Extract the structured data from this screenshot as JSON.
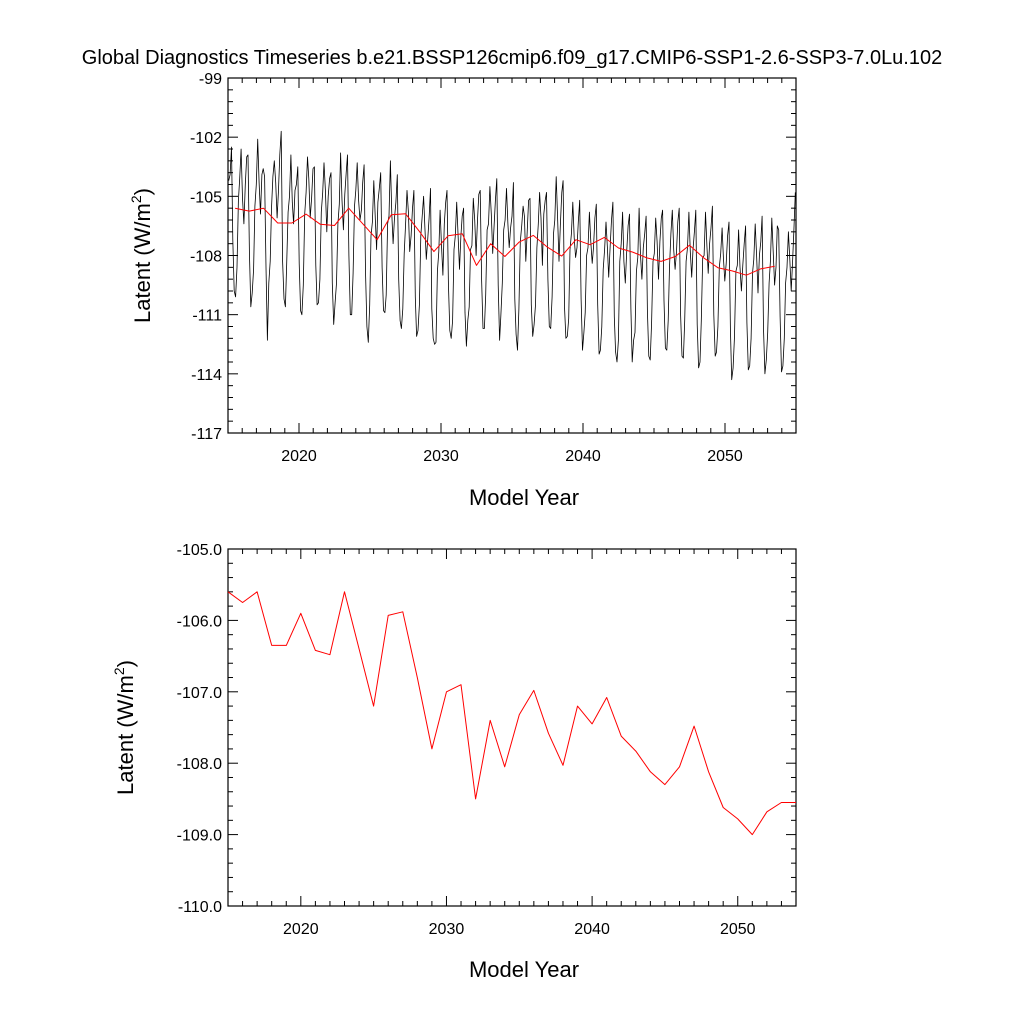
{
  "title": "Global Diagnostics Timeseries b.e21.BSSP126cmip6.f09_g17.CMIP6-SSP1-2.6-SSP3-7.0Lu.102",
  "chart_data": [
    {
      "type": "line",
      "xlabel": "Model Year",
      "ylabel_main": "Latent (W/m",
      "ylabel_sup": "2",
      "ylabel_close": ")",
      "xlim": [
        2015,
        2055
      ],
      "ylim": [
        -117,
        -99
      ],
      "xticks": [
        2020,
        2030,
        2040,
        2050
      ],
      "xtick_labels": [
        "2020",
        "2030",
        "2040",
        "2050"
      ],
      "yticks": [
        -99,
        -102,
        -105,
        -108,
        -111,
        -114,
        -117
      ],
      "ytick_labels": [
        "-99",
        "-102",
        "-105",
        "-108",
        "-111",
        "-114",
        "-117"
      ],
      "series": [
        {
          "color": "#000000",
          "description_values": "monthly values",
          "seasonal_phases": [
            0.0,
            2.6,
            4.2,
            -2.6,
            -4.8,
            -4.4,
            -2.4,
            0.4,
            2.2,
            3.6,
            1.2,
            0.0
          ],
          "noise_amplitude": 2.2,
          "x_start": 2015.0,
          "x_end": 2055.0,
          "values": [
            -104.2,
            -103.9,
            -102.5,
            -107.2,
            -109.8,
            -110.1,
            -108.6,
            -105.2,
            -104.1,
            -102.6,
            -105.1,
            -106.4,
            -104.4,
            -103.0,
            -102.9,
            -107.8,
            -110.6,
            -109.9,
            -108.7,
            -105.5,
            -104.4,
            -102.1,
            -104.3,
            -105.9,
            -103.9,
            -103.6,
            -104.0,
            -108.6,
            -112.3,
            -109.4,
            -108.3,
            -105.6,
            -104.0,
            -103.2,
            -104.3,
            -106.1,
            -104.8,
            -102.9,
            -101.7,
            -108.3,
            -110.2,
            -110.6,
            -108.4,
            -105.8,
            -105.0,
            -102.9,
            -105.3,
            -106.4,
            -104.7,
            -104.4,
            -103.5,
            -108.4,
            -110.8,
            -111.0,
            -109.5,
            -105.9,
            -104.8,
            -103.0,
            -104.1,
            -106.1,
            -105.1,
            -103.6,
            -103.5,
            -108.5,
            -110.5,
            -110.4,
            -109.2,
            -105.8,
            -104.8,
            -103.3,
            -104.7,
            -106.8,
            -105.0,
            -104.1,
            -103.8,
            -109.4,
            -111.5,
            -110.4,
            -109.4,
            -106.4,
            -105.4,
            -102.8,
            -105.2,
            -106.7,
            -104.9,
            -103.8,
            -102.9,
            -108.0,
            -111.0,
            -111.0,
            -108.9,
            -105.5,
            -104.7,
            -103.3,
            -105.2,
            -106.2,
            -105.7,
            -104.3,
            -103.4,
            -108.8,
            -111.6,
            -112.4,
            -110.5,
            -107.0,
            -106.3,
            -104.2,
            -106.0,
            -107.7,
            -105.3,
            -104.6,
            -103.8,
            -108.6,
            -110.8,
            -110.9,
            -110.0,
            -106.4,
            -106.0,
            -103.2,
            -105.9,
            -107.4,
            -106.1,
            -105.3,
            -103.9,
            -109.2,
            -111.3,
            -111.7,
            -110.7,
            -107.9,
            -106.4,
            -104.7,
            -105.8,
            -107.8,
            -107.0,
            -105.6,
            -104.7,
            -110.1,
            -112.1,
            -111.8,
            -110.5,
            -107.0,
            -106.0,
            -105.0,
            -106.6,
            -108.2,
            -107.2,
            -106.1,
            -104.6,
            -110.7,
            -112.2,
            -112.5,
            -112.4,
            -108.8,
            -107.8,
            -105.7,
            -107.5,
            -109.0,
            -106.4,
            -105.3,
            -104.7,
            -109.4,
            -111.8,
            -112.2,
            -111.3,
            -107.7,
            -107.0,
            -105.3,
            -107.0,
            -108.7,
            -107.0,
            -106.0,
            -105.6,
            -110.9,
            -112.6,
            -111.3,
            -110.6,
            -107.7,
            -107.5,
            -105.1,
            -106.2,
            -108.0,
            -106.2,
            -104.9,
            -104.7,
            -109.2,
            -111.7,
            -111.7,
            -110.0,
            -106.7,
            -106.4,
            -104.5,
            -105.9,
            -107.9,
            -106.6,
            -105.2,
            -104.1,
            -109.5,
            -112.3,
            -111.0,
            -109.4,
            -106.7,
            -106.2,
            -104.6,
            -106.4,
            -107.6,
            -106.6,
            -106.0,
            -104.3,
            -110.2,
            -112.0,
            -112.8,
            -110.7,
            -107.3,
            -106.5,
            -105.5,
            -106.0,
            -108.3,
            -106.8,
            -105.2,
            -105.1,
            -110.5,
            -112.1,
            -111.5,
            -110.5,
            -107.6,
            -106.4,
            -104.8,
            -106.1,
            -108.5,
            -105.9,
            -105.2,
            -104.8,
            -109.2,
            -111.6,
            -111.7,
            -110.1,
            -106.9,
            -106.2,
            -104.0,
            -106.1,
            -108.3,
            -106.4,
            -104.8,
            -104.2,
            -110.6,
            -112.2,
            -112.1,
            -111.2,
            -107.7,
            -106.9,
            -105.3,
            -107.1,
            -108.1,
            -107.6,
            -106.3,
            -105.2,
            -110.2,
            -112.8,
            -111.9,
            -110.9,
            -108.0,
            -107.6,
            -105.8,
            -107.3,
            -108.4,
            -107.6,
            -106.1,
            -105.4,
            -110.5,
            -113.0,
            -112.8,
            -111.6,
            -108.7,
            -107.7,
            -106.3,
            -107.6,
            -109.1,
            -107.6,
            -106.2,
            -105.3,
            -111.1,
            -112.9,
            -113.4,
            -112.3,
            -108.3,
            -107.4,
            -105.8,
            -108.3,
            -109.4,
            -107.8,
            -106.5,
            -105.9,
            -110.7,
            -113.4,
            -112.3,
            -111.9,
            -108.8,
            -108.1,
            -105.6,
            -108.0,
            -109.2,
            -107.6,
            -106.9,
            -106.0,
            -110.8,
            -113.1,
            -113.3,
            -111.4,
            -108.3,
            -107.9,
            -106.1,
            -107.3,
            -109.2,
            -107.3,
            -106.1,
            -105.7,
            -110.3,
            -112.7,
            -112.8,
            -111.3,
            -108.6,
            -106.9,
            -105.7,
            -107.7,
            -108.7,
            -107.8,
            -106.3,
            -105.6,
            -111.0,
            -113.1,
            -113.2,
            -111.3,
            -108.3,
            -107.6,
            -105.8,
            -107.8,
            -109.1,
            -107.7,
            -106.8,
            -105.7,
            -111.5,
            -113.7,
            -113.4,
            -111.3,
            -108.1,
            -108.0,
            -105.8,
            -107.5,
            -108.9,
            -107.4,
            -106.6,
            -105.5,
            -111.0,
            -113.1,
            -112.9,
            -111.6,
            -108.6,
            -107.9,
            -106.6,
            -108.1,
            -109.3,
            -108.4,
            -107.0,
            -106.3,
            -111.7,
            -114.3,
            -113.7,
            -112.1,
            -108.8,
            -108.5,
            -106.7,
            -108.6,
            -109.8,
            -108.5,
            -107.4,
            -106.5,
            -111.4,
            -113.8,
            -113.6,
            -112.2,
            -108.9,
            -108.2,
            -106.4,
            -108.0,
            -109.9,
            -108.0,
            -107.3,
            -106.0,
            -111.7,
            -114.0,
            -113.3,
            -111.9,
            -109.4,
            -108.3,
            -106.1,
            -107.8,
            -109.5,
            -108.6,
            -106.5,
            -106.7,
            -111.1,
            -113.9,
            -113.6,
            -112.2,
            -109.4,
            -108.6,
            -106.8,
            -108.2,
            -109.8,
            -108.4,
            -106.7,
            -104.8
          ]
        },
        {
          "color": "#ff0000",
          "description_values": "annual means",
          "x": [
            2015.5,
            2016.5,
            2017.5,
            2018.5,
            2019.5,
            2020.5,
            2021.5,
            2022.5,
            2023.5,
            2024.5,
            2025.5,
            2026.5,
            2027.5,
            2028.5,
            2029.5,
            2030.5,
            2031.5,
            2032.5,
            2033.5,
            2034.5,
            2035.5,
            2036.5,
            2037.5,
            2038.5,
            2039.5,
            2040.5,
            2041.5,
            2042.5,
            2043.5,
            2044.5,
            2045.5,
            2046.5,
            2047.5,
            2048.5,
            2049.5,
            2050.5,
            2051.5,
            2052.5,
            2053.5
          ],
          "values": [
            -105.6,
            -105.75,
            -105.6,
            -106.35,
            -106.35,
            -105.9,
            -106.42,
            -106.48,
            -105.6,
            -106.4,
            -107.2,
            -105.93,
            -105.88,
            -106.8,
            -107.8,
            -107.0,
            -106.9,
            -108.5,
            -107.4,
            -108.05,
            -107.32,
            -106.98,
            -107.58,
            -108.03,
            -107.2,
            -107.45,
            -107.08,
            -107.62,
            -107.83,
            -108.12,
            -108.3,
            -108.05,
            -107.48,
            -108.12,
            -108.62,
            -108.78,
            -109.0,
            -108.68,
            -108.55
          ]
        }
      ]
    },
    {
      "type": "line",
      "xlabel": "Model Year",
      "ylabel_main": "Latent (W/m",
      "ylabel_sup": "2",
      "ylabel_close": ")",
      "xlim": [
        2015,
        2054
      ],
      "ylim": [
        -110.0,
        -105.0
      ],
      "xticks": [
        2020,
        2030,
        2040,
        2050
      ],
      "xtick_labels": [
        "2020",
        "2030",
        "2040",
        "2050"
      ],
      "yticks": [
        -105.0,
        -106.0,
        -107.0,
        -108.0,
        -109.0,
        -110.0
      ],
      "ytick_labels": [
        "-105.0",
        "-106.0",
        "-107.0",
        "-108.0",
        "-109.0",
        "-110.0"
      ],
      "series": [
        {
          "color": "#ff0000",
          "description_values": "annual means",
          "x": [
            2015.0,
            2016.0,
            2017.0,
            2018.0,
            2019.0,
            2020.0,
            2021.0,
            2022.0,
            2023.0,
            2024.0,
            2025.0,
            2026.0,
            2027.0,
            2028.0,
            2029.0,
            2030.0,
            2031.0,
            2032.0,
            2033.0,
            2034.0,
            2035.0,
            2036.0,
            2037.0,
            2038.0,
            2039.0,
            2040.0,
            2041.0,
            2042.0,
            2043.0,
            2044.0,
            2045.0,
            2046.0,
            2047.0,
            2048.0,
            2049.0,
            2050.0,
            2051.0,
            2052.0,
            2053.0,
            2054.0
          ],
          "values": [
            -105.6,
            -105.75,
            -105.6,
            -106.35,
            -106.35,
            -105.9,
            -106.42,
            -106.48,
            -105.6,
            -106.4,
            -107.2,
            -105.93,
            -105.88,
            -106.8,
            -107.8,
            -107.0,
            -106.9,
            -108.5,
            -107.4,
            -108.05,
            -107.32,
            -106.98,
            -107.58,
            -108.03,
            -107.2,
            -107.45,
            -107.08,
            -107.62,
            -107.83,
            -108.12,
            -108.3,
            -108.05,
            -107.48,
            -108.12,
            -108.62,
            -108.78,
            -109.0,
            -108.68,
            -108.55,
            -108.55
          ]
        }
      ]
    }
  ]
}
